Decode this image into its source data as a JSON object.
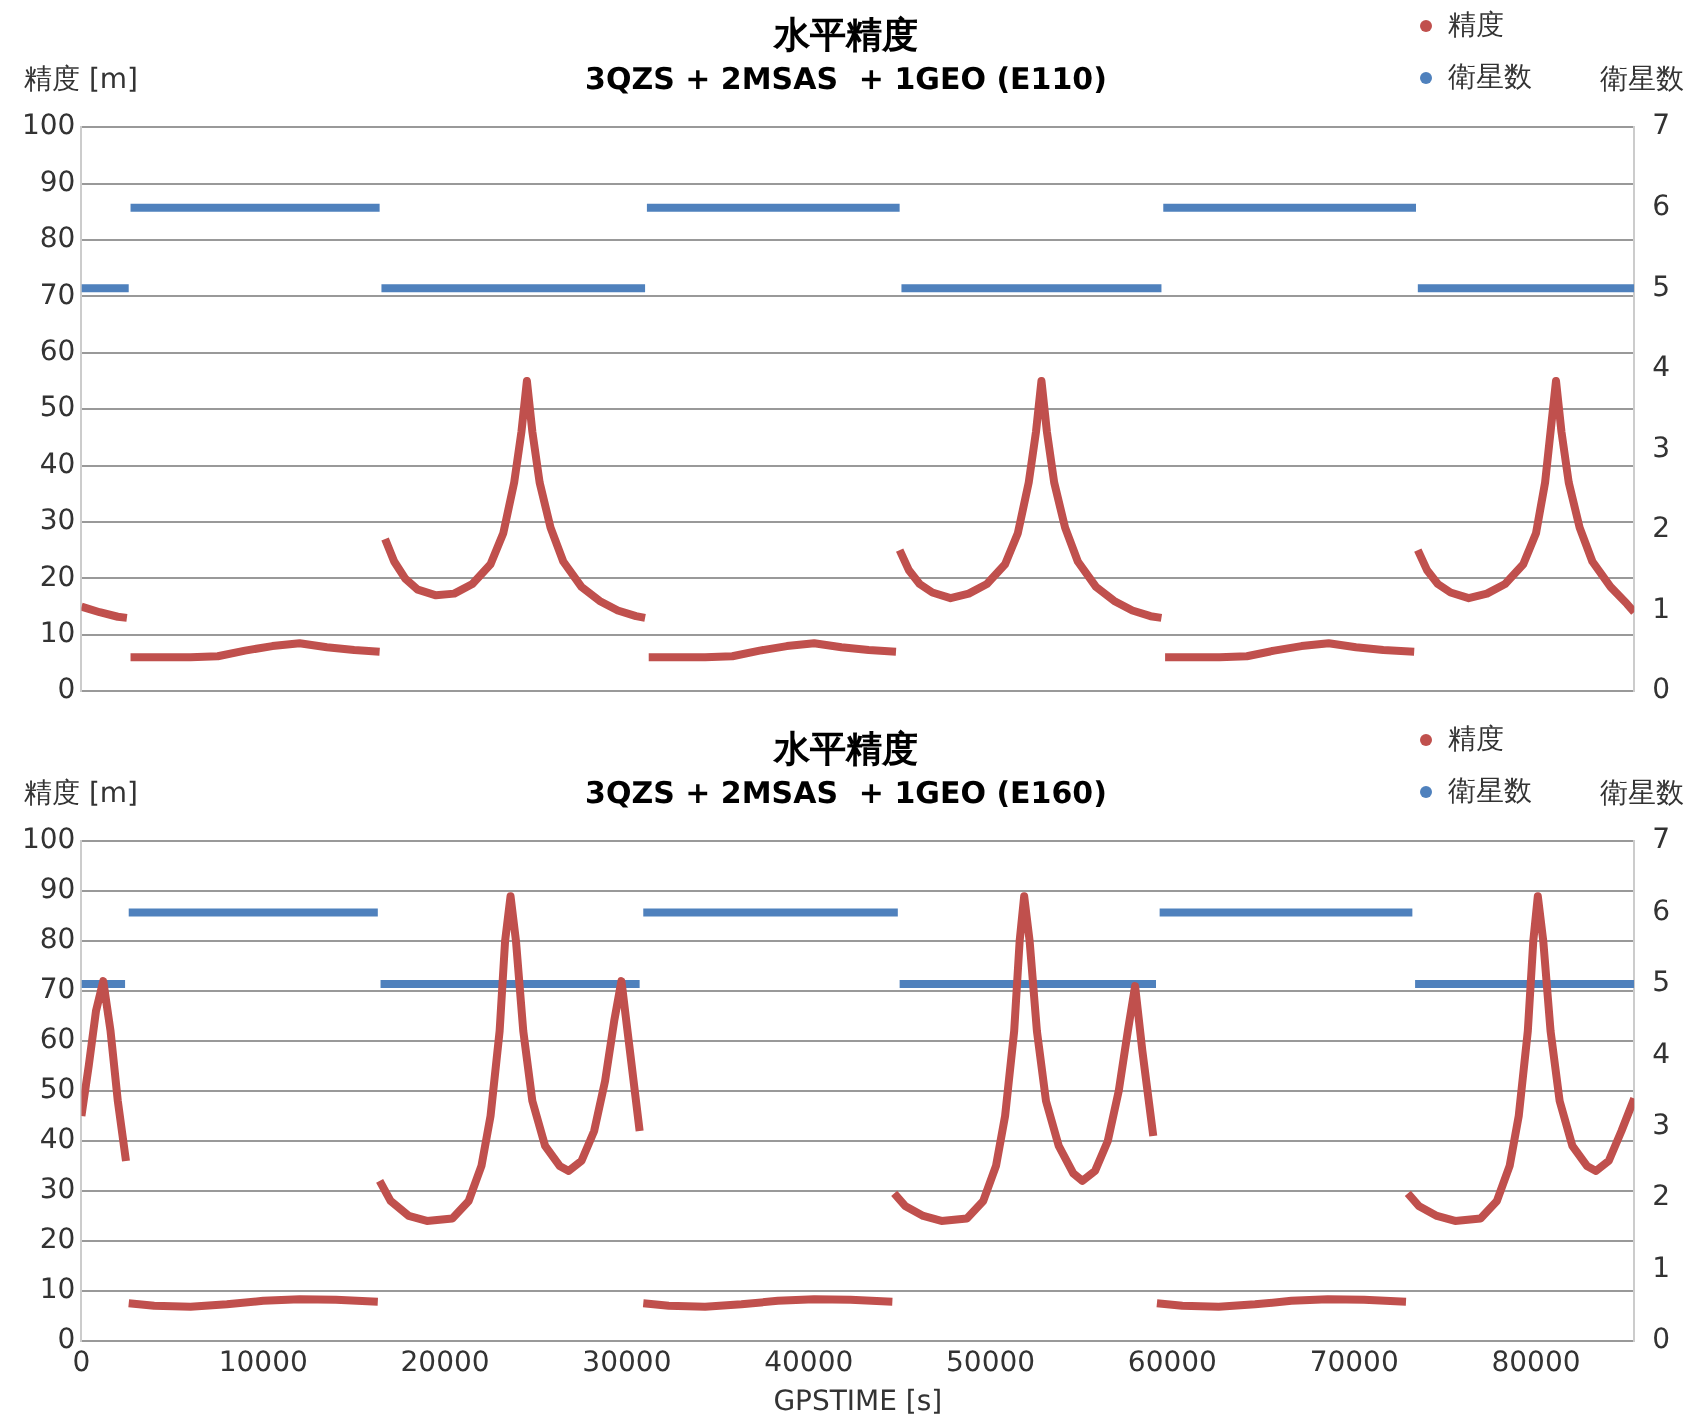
{
  "chart_data": [
    {
      "type": "line",
      "title": "水平精度",
      "subtitle": "3QZS + 2MSAS  + 1GEO (E110)",
      "ylabel": "精度 [m]",
      "y2label": "衛星数",
      "xlim": [
        0,
        85400
      ],
      "xticks": [
        0,
        10000,
        20000,
        30000,
        40000,
        50000,
        60000,
        70000,
        80000
      ],
      "ylim": [
        0,
        100
      ],
      "yticks": [
        0,
        10,
        20,
        30,
        40,
        50,
        60,
        70,
        80,
        90,
        100
      ],
      "y2lim": [
        0,
        7
      ],
      "y2ticks": [
        0,
        1,
        2,
        3,
        4,
        5,
        6,
        7
      ],
      "grid": "y",
      "legend": "top right",
      "tick_labels": "y",
      "marker": "none",
      "line_style": "solid",
      "series": [
        {
          "name": "精度",
          "color": "#c0504d",
          "x": [
            0,
            1000,
            2000,
            2500,
            2600,
            2700,
            4000,
            6000,
            7500,
            9000,
            10500,
            12000,
            13500,
            15000,
            16400,
            16500,
            16700,
            17200,
            17800,
            18500,
            19500,
            20500,
            21500,
            22500,
            23200,
            23800,
            24200,
            24500,
            24800,
            25200,
            25800,
            26500,
            27500,
            28500,
            29500,
            30500,
            31000,
            31100,
            31200,
            32300,
            34300,
            35800,
            37300,
            38800,
            40300,
            41800,
            43300,
            44800,
            44900,
            45000,
            45500,
            46100,
            46800,
            47800,
            48800,
            49800,
            50800,
            51500,
            52100,
            52500,
            52800,
            53100,
            53500,
            54100,
            54800,
            55800,
            56800,
            57800,
            58800,
            59400,
            59500,
            59600,
            60600,
            62600,
            64100,
            65600,
            67100,
            68600,
            70100,
            71600,
            73300,
            73400,
            73500,
            74000,
            74600,
            75300,
            76300,
            77300,
            78300,
            79300,
            80000,
            80500,
            80800,
            81100,
            81400,
            81800,
            82400,
            83100,
            84100,
            85000,
            85400
          ],
          "values": [
            15,
            14,
            13.2,
            13,
            null,
            6,
            6,
            6,
            6.2,
            7.2,
            8,
            8.5,
            7.8,
            7.3,
            7,
            null,
            27,
            23,
            20,
            18,
            17,
            17.3,
            19,
            22.5,
            28,
            37,
            46,
            55,
            46,
            37,
            29,
            23,
            18.5,
            16,
            14.3,
            13.3,
            13,
            null,
            6,
            6,
            6,
            6.2,
            7.2,
            8,
            8.5,
            7.8,
            7.3,
            7,
            null,
            25,
            21.5,
            19,
            17.5,
            16.5,
            17.3,
            19,
            22.5,
            28,
            37,
            46,
            55,
            46,
            37,
            29,
            23,
            18.5,
            16,
            14.3,
            13.3,
            13,
            null,
            6,
            6,
            6,
            6.2,
            7.2,
            8,
            8.5,
            7.8,
            7.3,
            7,
            null,
            25,
            21.5,
            19,
            17.5,
            16.5,
            17.3,
            19,
            22.5,
            28,
            37,
            46,
            55,
            46,
            37,
            29,
            23,
            18.5,
            15.5,
            14
          ]
        },
        {
          "name": "衛星数",
          "color": "#4f81bd",
          "axis": "y2",
          "x": [
            0,
            2600,
            2650,
            2700,
            16400,
            16450,
            16500,
            31000,
            31050,
            31100,
            45000,
            45050,
            45100,
            59400,
            59450,
            59500,
            73400,
            73450,
            73500,
            85400
          ],
          "values": [
            5,
            5,
            null,
            6,
            6,
            null,
            5,
            5,
            null,
            6,
            6,
            null,
            5,
            5,
            null,
            6,
            6,
            null,
            5,
            5
          ]
        }
      ]
    },
    {
      "type": "line",
      "title": "水平精度",
      "subtitle": "3QZS + 2MSAS  + 1GEO (E160)",
      "xlabel": "GPSTIME [s]",
      "ylabel": "精度 [m]",
      "y2label": "衛星数",
      "xlim": [
        0,
        85400
      ],
      "xticks": [
        0,
        10000,
        20000,
        30000,
        40000,
        50000,
        60000,
        70000,
        80000
      ],
      "ylim": [
        0,
        100
      ],
      "yticks": [
        0,
        10,
        20,
        30,
        40,
        50,
        60,
        70,
        80,
        90,
        100
      ],
      "y2lim": [
        0,
        7
      ],
      "y2ticks": [
        0,
        1,
        2,
        3,
        4,
        5,
        6,
        7
      ],
      "grid": "y",
      "legend": "top right",
      "marker": "none",
      "line_style": "solid",
      "series": [
        {
          "name": "精度",
          "color": "#c0504d",
          "x": [
            0,
            400,
            800,
            1200,
            1600,
            2000,
            2450,
            2500,
            2600,
            4000,
            6000,
            8000,
            10000,
            12000,
            14000,
            16300,
            16350,
            16400,
            17000,
            18000,
            19000,
            20400,
            21300,
            22000,
            22500,
            23000,
            23300,
            23600,
            23900,
            24300,
            24800,
            25500,
            26300,
            26800,
            27500,
            28200,
            28800,
            29300,
            29700,
            30100,
            30700,
            30800,
            30900,
            32300,
            34300,
            36300,
            38300,
            40300,
            42300,
            44600,
            44650,
            44700,
            45300,
            46300,
            47300,
            48700,
            49600,
            50300,
            50800,
            51300,
            51600,
            51850,
            52150,
            52550,
            53050,
            53750,
            54550,
            55050,
            55750,
            56450,
            57050,
            57550,
            57950,
            58350,
            58950,
            59050,
            59150,
            60550,
            62550,
            64550,
            66550,
            68550,
            70550,
            72850,
            72900,
            72950,
            73550,
            74550,
            75550,
            76950,
            77850,
            78550,
            79050,
            79550,
            79850,
            80100,
            80400,
            80800,
            81300,
            82000,
            82800,
            83300,
            84000,
            84700,
            85400
          ],
          "values": [
            45,
            55,
            66,
            72,
            62,
            48,
            36,
            null,
            7.5,
            7,
            6.8,
            7.3,
            8,
            8.3,
            8.2,
            7.8,
            null,
            32,
            28,
            25,
            24,
            24.5,
            28,
            35,
            45,
            62,
            80,
            89,
            80,
            62,
            48,
            39,
            35,
            34,
            36,
            42,
            52,
            64,
            72,
            60,
            42,
            null,
            7.5,
            7,
            6.8,
            7.3,
            8,
            8.3,
            8.2,
            7.8,
            null,
            29.5,
            27,
            25,
            24,
            24.5,
            28,
            35,
            45,
            62,
            80,
            89,
            80,
            62,
            48,
            39,
            33.5,
            32,
            34,
            40,
            50,
            62,
            71,
            58,
            41,
            null,
            7.5,
            7,
            6.8,
            7.3,
            8,
            8.3,
            8.2,
            7.8,
            null,
            29.5,
            27,
            25,
            24,
            24.5,
            28,
            35,
            45,
            62,
            80,
            89,
            80,
            62,
            48,
            39,
            35,
            34,
            36,
            42,
            48.5
          ]
        },
        {
          "name": "衛星数",
          "color": "#4f81bd",
          "axis": "y2",
          "x": [
            0,
            2400,
            2500,
            2600,
            16300,
            16375,
            16450,
            30700,
            30800,
            30900,
            44900,
            44950,
            45000,
            59100,
            59200,
            59300,
            73200,
            73275,
            73350,
            85400
          ],
          "values": [
            5,
            5,
            null,
            6,
            6,
            null,
            5,
            5,
            null,
            6,
            6,
            null,
            5,
            5,
            null,
            6,
            6,
            null,
            5,
            5
          ]
        }
      ]
    }
  ]
}
